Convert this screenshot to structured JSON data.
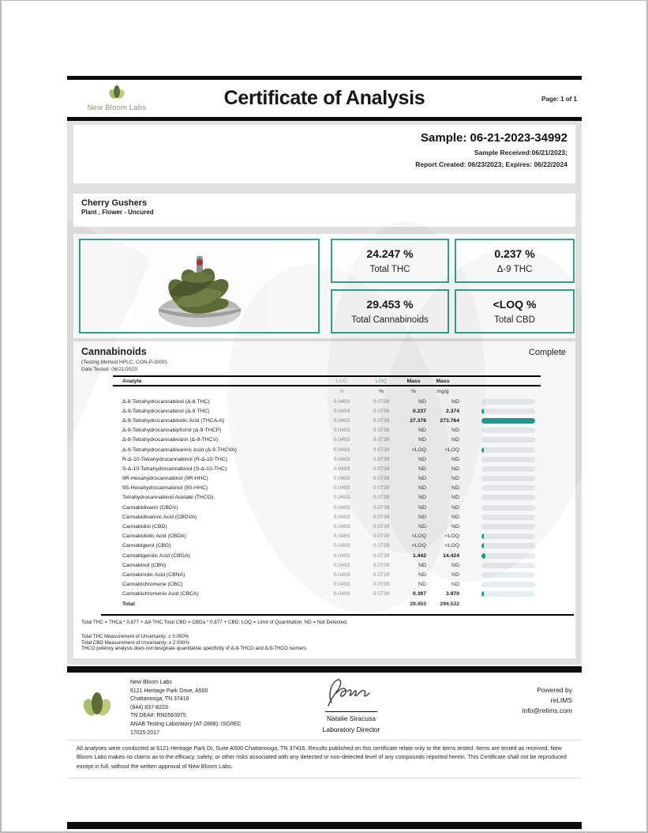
{
  "colors": {
    "accent": "#2fa493",
    "bar_fill": "#169e93",
    "bar_bg": "#e8edf0",
    "black_bar": "#0d0d0d"
  },
  "header": {
    "title": "Certificate of Analysis",
    "page_label": "Page: 1 of 1",
    "brand": "New Bloom Labs"
  },
  "sample": {
    "id_line": "Sample: 06-21-2023-34992",
    "received_line": "Sample Received:06/21/2023;",
    "report_line": "Report Created: 06/23/2023; Expires: 06/22/2024"
  },
  "product": {
    "name": "Cherry Gushers",
    "type": "Plant , Flower - Uncured"
  },
  "summary": [
    {
      "value": "24.247 %",
      "label": "Total THC"
    },
    {
      "value": "0.237 %",
      "label": "Δ-9 THC"
    },
    {
      "value": "29.453 %",
      "label": "Total Cannabinoids"
    },
    {
      "value": "<LOQ %",
      "label": "Total CBD"
    }
  ],
  "section": {
    "title": "Cannabinoids",
    "status": "Complete",
    "method": "(Testing Method:HPLC, CON-P-3000)",
    "date_tested": "Date Tested: 06/21/2023"
  },
  "chart_data": {
    "type": "bar",
    "title": "Cannabinoids mass bars",
    "categories": [
      "Δ-9 THC",
      "THCA-A",
      "Δ-9-THCVA",
      "CBDA",
      "CBG",
      "CBGA",
      "CBCA"
    ],
    "values": [
      0.237,
      27.376,
      0.05,
      0.05,
      0.05,
      1.442,
      0.397
    ],
    "xlabel": "",
    "ylabel": "Mass %",
    "ylim": [
      0,
      27.376
    ],
    "legend": "none"
  },
  "table": {
    "headers": {
      "analyte": "Analyte",
      "lod": "LOD",
      "loq": "LOQ",
      "mass_pct": "Mass",
      "mass_mgg": "Mass"
    },
    "units": {
      "lod": "%",
      "loq": "%",
      "mass_pct": "%",
      "mass_mgg": "mg/g"
    },
    "rows": [
      {
        "name": "Δ-8-Tetrahydrocannabinol (Δ-8 THC)",
        "lod": "0.0493",
        "loq": "0.0739",
        "mass_pct": "ND",
        "mass_mgg": "ND",
        "detected": false,
        "bar_pct": 0
      },
      {
        "name": "Δ-9-Tetrahydrocannabinol (Δ-9 THC)",
        "lod": "0.0493",
        "loq": "0.0739",
        "mass_pct": "0.237",
        "mass_mgg": "2.374",
        "detected": true,
        "bar_pct": 4
      },
      {
        "name": "Δ-9-Tetrahydrocannabinolic Acid (THCA-A)",
        "lod": "0.0493",
        "loq": "0.0739",
        "mass_pct": "27.376",
        "mass_mgg": "273.764",
        "detected": true,
        "bar_pct": 100
      },
      {
        "name": "Δ-9-Tetrahydrocannabiphorol (Δ-9-THCP)",
        "lod": "0.0493",
        "loq": "0.0739",
        "mass_pct": "ND",
        "mass_mgg": "ND",
        "detected": false,
        "bar_pct": 0
      },
      {
        "name": "Δ-9-Tetrahydrocannabivarin (Δ-9-THCV)",
        "lod": "0.0493",
        "loq": "0.0739",
        "mass_pct": "ND",
        "mass_mgg": "ND",
        "detected": false,
        "bar_pct": 0
      },
      {
        "name": "Δ-9-Tetrahydrocannabivarinic Acid (Δ-9-THCVA)",
        "lod": "0.0493",
        "loq": "0.0739",
        "mass_pct": "<LOQ",
        "mass_mgg": "<LOQ",
        "detected": false,
        "bar_pct": 4
      },
      {
        "name": "R-Δ-10-Tetrahydrocannabinol (R-Δ-10-THC)",
        "lod": "0.0493",
        "loq": "0.0739",
        "mass_pct": "ND",
        "mass_mgg": "ND",
        "detected": false,
        "bar_pct": 0
      },
      {
        "name": "S-Δ-10-Tetrahydrocannabinol (S-Δ-10-THC)",
        "lod": "0.0493",
        "loq": "0.0739",
        "mass_pct": "ND",
        "mass_mgg": "ND",
        "detected": false,
        "bar_pct": 0
      },
      {
        "name": "9R-Hexahydrocannabinol (9R-HHC)",
        "lod": "0.0493",
        "loq": "0.0739",
        "mass_pct": "ND",
        "mass_mgg": "ND",
        "detected": false,
        "bar_pct": 0
      },
      {
        "name": "9S-Hexahydrocannabinol (9S-HHC)",
        "lod": "0.0493",
        "loq": "0.0739",
        "mass_pct": "ND",
        "mass_mgg": "ND",
        "detected": false,
        "bar_pct": 0
      },
      {
        "name": "Tetrahydrocannabinol Acetate (THCO)",
        "lod": "0.0493",
        "loq": "0.0739",
        "mass_pct": "ND",
        "mass_mgg": "ND",
        "detected": false,
        "bar_pct": 0
      },
      {
        "name": "Cannabidivarin (CBDV)",
        "lod": "0.0493",
        "loq": "0.0739",
        "mass_pct": "ND",
        "mass_mgg": "ND",
        "detected": false,
        "bar_pct": 0
      },
      {
        "name": "Cannabidivarinic Acid (CBDVA)",
        "lod": "0.0493",
        "loq": "0.0739",
        "mass_pct": "ND",
        "mass_mgg": "ND",
        "detected": false,
        "bar_pct": 0
      },
      {
        "name": "Cannabidiol (CBD)",
        "lod": "0.0493",
        "loq": "0.0739",
        "mass_pct": "ND",
        "mass_mgg": "ND",
        "detected": false,
        "bar_pct": 0
      },
      {
        "name": "Cannabidiolic Acid (CBDA)",
        "lod": "0.0463",
        "loq": "0.0739",
        "mass_pct": "<LOQ",
        "mass_mgg": "<LOQ",
        "detected": false,
        "bar_pct": 4
      },
      {
        "name": "Cannabigerol (CBG)",
        "lod": "0.0493",
        "loq": "0.0739",
        "mass_pct": "<LOQ",
        "mass_mgg": "<LOQ",
        "detected": false,
        "bar_pct": 4
      },
      {
        "name": "Cannabigerolic Acid (CBGA)",
        "lod": "0.0493",
        "loq": "0.0739",
        "mass_pct": "1.442",
        "mass_mgg": "14.424",
        "detected": true,
        "bar_pct": 8
      },
      {
        "name": "Cannabinol (CBN)",
        "lod": "0.0493",
        "loq": "0.0739",
        "mass_pct": "ND",
        "mass_mgg": "ND",
        "detected": false,
        "bar_pct": 0
      },
      {
        "name": "Cannabinolic Acid (CBNA)",
        "lod": "0.0493",
        "loq": "0.0739",
        "mass_pct": "ND",
        "mass_mgg": "ND",
        "detected": false,
        "bar_pct": 0
      },
      {
        "name": "Cannabichromene (CBC)",
        "lod": "0.0493",
        "loq": "0.0739",
        "mass_pct": "ND",
        "mass_mgg": "ND",
        "detected": false,
        "bar_pct": 0
      },
      {
        "name": "Cannabichromenic Acid (CBCA)",
        "lod": "0.0493",
        "loq": "0.0739",
        "mass_pct": "0.397",
        "mass_mgg": "3.970",
        "detected": true,
        "bar_pct": 4
      }
    ],
    "total": {
      "name": "Total",
      "mass_pct": "29.453",
      "mass_mgg": "294.532"
    }
  },
  "notes": {
    "formula": "Total THC = THCa * 0.877 + Δ9-THC;Total CBD = CBDa * 0.877 + CBD; LOQ = Limit of Quantitation; ND = Not Detected.",
    "uncertainty": [
      "Total THC Measurement of Uncertainty: ± 0.050%",
      "Total CBD Measurement of Uncertainty: ± 2.000%",
      "THCO potency analysis does not designate quantitative specificity of Δ-8-THCO and Δ-9-THCO isomers"
    ]
  },
  "footer": {
    "lab_lines": [
      "New Bloom Labs",
      "6121 Heritage Park Drive, A500",
      "Chattanooga, TN 37416",
      "(844) 837-8223",
      "TN DEA#: RN0563975",
      "ANAB Testing Laboratory (AT-2868): ISO/IEC",
      "17025:2017"
    ],
    "signer_name": "Natalie Siracusa",
    "signer_title": "Laboratory Director",
    "powered_lines": [
      "Powered by",
      "reLIMS",
      "info@relims.com"
    ]
  },
  "disclaimer": "All analyses were conducted at 6121 Heritage Park Dr, Suite A500 Chattanooga, TN 37416. Results published on this certificate relate only to the items tested. Items are tested as received. New Bloom Labs makes no claims as to the efficacy, safety, or other risks associated with any detected or non-detected level of any compounds reported herein. This Certificate shall not be reproduced except in full, without the written approval of New Bloom Labs."
}
